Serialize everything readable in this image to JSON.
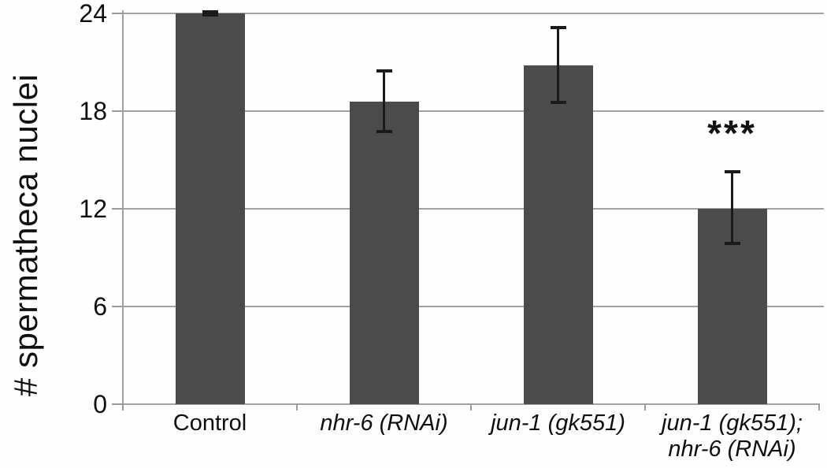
{
  "chart_data": {
    "type": "bar",
    "title": "",
    "xlabel": "",
    "ylabel": "# spermatheca nuclei",
    "ylim": [
      0,
      24
    ],
    "yticks": [
      0,
      6,
      12,
      18,
      24
    ],
    "grid": true,
    "legend": false,
    "categories": [
      {
        "lines": [
          "Control"
        ],
        "italic": false
      },
      {
        "lines": [
          "nhr-6 (RNAi)"
        ],
        "italic": true
      },
      {
        "lines": [
          "jun-1 (gk551)"
        ],
        "italic": true
      },
      {
        "lines": [
          "jun-1 (gk551);",
          "nhr-6 (RNAi)"
        ],
        "italic": true
      }
    ],
    "series": [
      {
        "name": "# spermatheca nuclei",
        "values": [
          24,
          18.6,
          20.8,
          12
        ],
        "error_up": [
          0.15,
          1.9,
          2.4,
          2.3
        ],
        "error_down": [
          0.15,
          1.9,
          2.3,
          2.2
        ]
      }
    ],
    "annotations": [
      {
        "text": "***",
        "category_index": 3,
        "y": 16.6
      }
    ],
    "colors": {
      "bar": "#4b4b4b",
      "gridline": "#a2a2a2",
      "axis": "#9a9a9a",
      "error_bar": "#1b1b1b",
      "text": "#0f0f0f",
      "background": "#fefefe"
    }
  }
}
